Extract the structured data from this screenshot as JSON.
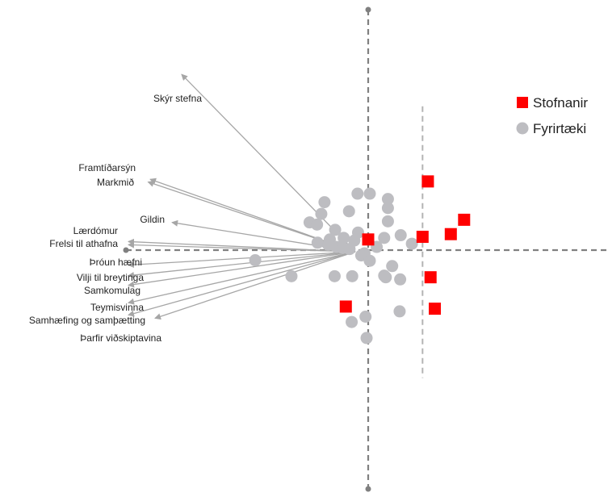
{
  "chart_data": {
    "type": "scatter",
    "title": "",
    "xlabel": "",
    "ylabel": "",
    "xlim": [
      -4.5,
      4.5
    ],
    "ylim": [
      -4.5,
      4.5
    ],
    "grid": false,
    "legend_position": "top-right",
    "series": [
      {
        "name": "Stofnanir",
        "marker": "square",
        "color": "#ff0000",
        "points": [
          [
            1.12,
            1.29
          ],
          [
            1.8,
            0.57
          ],
          [
            1.55,
            0.3
          ],
          [
            1.02,
            0.25
          ],
          [
            0.0,
            0.2
          ],
          [
            1.17,
            -0.51
          ],
          [
            -0.42,
            -1.06
          ],
          [
            1.25,
            -1.1
          ]
        ]
      },
      {
        "name": "Fyrirtæki",
        "marker": "circle",
        "color": "#bdbdc1",
        "points": [
          [
            -0.2,
            1.06
          ],
          [
            0.03,
            1.06
          ],
          [
            -0.82,
            0.9
          ],
          [
            0.37,
            0.96
          ],
          [
            -0.88,
            0.68
          ],
          [
            -0.36,
            0.73
          ],
          [
            0.37,
            0.79
          ],
          [
            -1.1,
            0.52
          ],
          [
            0.37,
            0.54
          ],
          [
            -0.62,
            0.38
          ],
          [
            -0.96,
            0.48
          ],
          [
            -0.19,
            0.33
          ],
          [
            0.3,
            0.23
          ],
          [
            0.61,
            0.28
          ],
          [
            -0.72,
            0.2
          ],
          [
            -0.46,
            0.23
          ],
          [
            -0.26,
            0.18
          ],
          [
            0.82,
            0.12
          ],
          [
            -0.95,
            0.14
          ],
          [
            -0.75,
            0.1
          ],
          [
            -0.6,
            0.06
          ],
          [
            -0.48,
            0.04
          ],
          [
            -0.35,
            0.02
          ],
          [
            0.16,
            0.06
          ],
          [
            -0.07,
            -0.06
          ],
          [
            -0.13,
            -0.1
          ],
          [
            0.03,
            -0.2
          ],
          [
            -2.12,
            -0.19
          ],
          [
            0.45,
            -0.3
          ],
          [
            0.3,
            -0.48
          ],
          [
            -1.44,
            -0.49
          ],
          [
            -0.63,
            -0.49
          ],
          [
            -0.3,
            -0.49
          ],
          [
            0.33,
            -0.51
          ],
          [
            0.6,
            -0.55
          ],
          [
            0.59,
            -1.15
          ],
          [
            -0.05,
            -1.25
          ],
          [
            -0.31,
            -1.35
          ],
          [
            -0.03,
            -1.65
          ]
        ]
      }
    ],
    "vectors": [
      {
        "label": "Skýr stefna",
        "x": -3.5,
        "y": 3.3
      },
      {
        "label": "Framtíðarsýn",
        "x": -4.09,
        "y": 1.33
      },
      {
        "label": "Markmið",
        "x": -4.13,
        "y": 1.28
      },
      {
        "label": "Gildin",
        "x": -3.68,
        "y": 0.52
      },
      {
        "label": "Lærdómur",
        "x": -4.5,
        "y": 0.16
      },
      {
        "label": "Frelsi til athafna",
        "x": -4.5,
        "y": 0.1
      },
      {
        "label": "Þróun hæfni",
        "x": -4.5,
        "y": -0.28
      },
      {
        "label": "Vilji til breytinga",
        "x": -4.5,
        "y": -0.48
      },
      {
        "label": "Samkomulag",
        "x": -4.5,
        "y": -0.66
      },
      {
        "label": "Teymisvinna",
        "x": -4.5,
        "y": -0.99
      },
      {
        "label": "Samhæfing og samþætting",
        "x": -4.5,
        "y": -1.22
      },
      {
        "label": "Þarfir viðskiptavina",
        "x": -4.0,
        "y": -1.28
      }
    ],
    "dashed_line_x": 1.02,
    "dashed_line_y_range": [
      -2.4,
      2.7
    ],
    "colors": {
      "axis": "#808080",
      "arrow": "#a6a6a6",
      "vline": "#b3b3b3"
    }
  },
  "legend": [
    {
      "label": "Stofnanir",
      "marker": "square",
      "color": "#ff0000"
    },
    {
      "label": "Fyrirtæki",
      "marker": "circle",
      "color": "#bdbdc1"
    }
  ]
}
